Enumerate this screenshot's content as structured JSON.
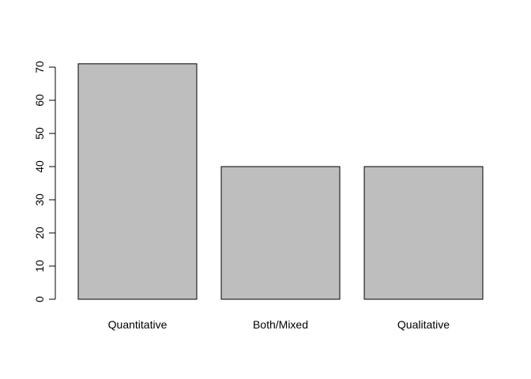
{
  "chart_data": {
    "type": "bar",
    "categories": [
      "Quantitative",
      "Both/Mixed",
      "Qualitative"
    ],
    "values": [
      71,
      40,
      40
    ],
    "ylim": [
      0,
      70
    ],
    "yticks": [
      0,
      10,
      20,
      30,
      40,
      50,
      60,
      70
    ],
    "bar_color": "#bebebe",
    "border_color": "#000000",
    "grid": false,
    "title": "",
    "xlabel": "",
    "ylabel": ""
  }
}
